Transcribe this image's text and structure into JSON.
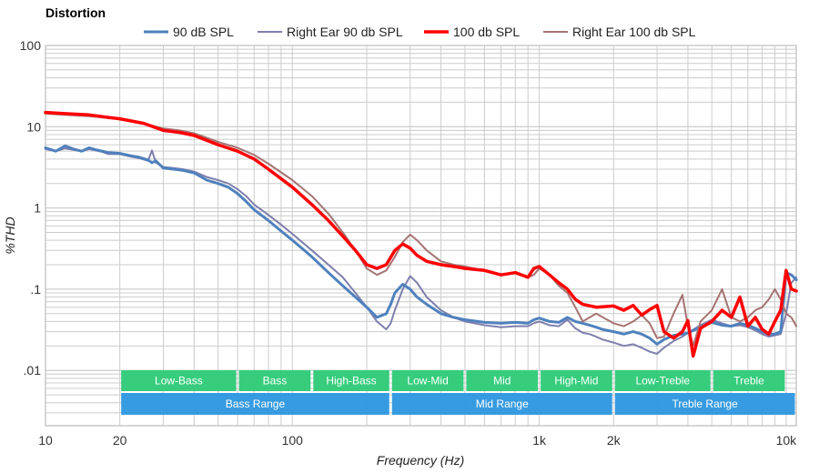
{
  "chart_data": {
    "type": "line",
    "title": "Distortion",
    "xlabel": "Frequency (Hz)",
    "ylabel": "%THD",
    "xscale": "log",
    "yscale": "log",
    "xlim": [
      10,
      11000
    ],
    "ylim": [
      0.002,
      100
    ],
    "grid": true,
    "legend_position": "top-center",
    "x_ticks": [
      {
        "value": 10,
        "label": "10"
      },
      {
        "value": 20,
        "label": "20"
      },
      {
        "value": 100,
        "label": "100"
      },
      {
        "value": 1000,
        "label": "1k"
      },
      {
        "value": 2000,
        "label": "2k"
      },
      {
        "value": 10000,
        "label": "10k"
      }
    ],
    "y_ticks": [
      {
        "value": 100,
        "label": "100"
      },
      {
        "value": 10,
        "label": "10"
      },
      {
        "value": 1,
        "label": "1"
      },
      {
        "value": 0.1,
        "label": ".1"
      },
      {
        "value": 0.01,
        "label": ".01"
      }
    ],
    "series": [
      {
        "name": "90 dB SPL",
        "color": "#4f81bd",
        "x": [
          10,
          11,
          12,
          13,
          14,
          15,
          16,
          17,
          18,
          20,
          22,
          24,
          26,
          27,
          28,
          30,
          33,
          36,
          40,
          45,
          50,
          55,
          60,
          65,
          70,
          80,
          90,
          100,
          120,
          140,
          160,
          180,
          200,
          220,
          240,
          250,
          260,
          280,
          300,
          320,
          350,
          400,
          450,
          500,
          600,
          700,
          800,
          900,
          950,
          1000,
          1100,
          1200,
          1300,
          1400,
          1500,
          1600,
          1700,
          1800,
          2000,
          2200,
          2400,
          2600,
          2800,
          3000,
          3200,
          3500,
          3800,
          4000,
          4500,
          5000,
          5500,
          6000,
          6500,
          7000,
          7500,
          8000,
          8500,
          9000,
          9500,
          10000,
          10500,
          11000
        ],
        "values": [
          5.5,
          5.0,
          5.8,
          5.3,
          5.0,
          5.5,
          5.2,
          5.0,
          4.8,
          4.7,
          4.4,
          4.2,
          3.9,
          3.6,
          3.8,
          3.1,
          3.0,
          2.9,
          2.7,
          2.2,
          2.0,
          1.8,
          1.5,
          1.2,
          0.95,
          0.7,
          0.52,
          0.4,
          0.25,
          0.16,
          0.11,
          0.08,
          0.06,
          0.045,
          0.05,
          0.065,
          0.09,
          0.115,
          0.1,
          0.08,
          0.065,
          0.05,
          0.045,
          0.042,
          0.039,
          0.038,
          0.039,
          0.038,
          0.042,
          0.044,
          0.04,
          0.039,
          0.045,
          0.04,
          0.038,
          0.036,
          0.034,
          0.032,
          0.03,
          0.028,
          0.03,
          0.028,
          0.025,
          0.021,
          0.024,
          0.027,
          0.028,
          0.029,
          0.034,
          0.039,
          0.036,
          0.035,
          0.038,
          0.036,
          0.033,
          0.03,
          0.028,
          0.028,
          0.03,
          0.16,
          0.15,
          0.13
        ]
      },
      {
        "name": "Right Ear 90 db SPL",
        "color": "#7f7fad",
        "x": [
          10,
          11,
          12,
          13,
          14,
          15,
          16,
          17,
          18,
          20,
          22,
          24,
          26,
          27,
          28,
          30,
          33,
          36,
          40,
          45,
          50,
          55,
          60,
          65,
          70,
          80,
          90,
          100,
          120,
          140,
          160,
          180,
          200,
          220,
          240,
          250,
          260,
          280,
          300,
          320,
          350,
          400,
          450,
          500,
          600,
          700,
          800,
          900,
          950,
          1000,
          1100,
          1200,
          1300,
          1400,
          1500,
          1600,
          1700,
          1800,
          2000,
          2200,
          2400,
          2600,
          2800,
          3000,
          3200,
          3500,
          3800,
          4000,
          4500,
          5000,
          5500,
          6000,
          6500,
          7000,
          7500,
          8000,
          8500,
          9000,
          9500,
          10000,
          10500,
          11000
        ],
        "values": [
          5.3,
          5.0,
          5.4,
          5.2,
          5.0,
          5.3,
          5.1,
          4.9,
          4.6,
          4.6,
          4.3,
          4.1,
          3.8,
          5.1,
          3.6,
          3.2,
          3.1,
          3.0,
          2.8,
          2.4,
          2.2,
          2.0,
          1.7,
          1.4,
          1.1,
          0.82,
          0.62,
          0.48,
          0.3,
          0.2,
          0.14,
          0.09,
          0.06,
          0.04,
          0.032,
          0.038,
          0.055,
          0.1,
          0.145,
          0.12,
          0.08,
          0.055,
          0.045,
          0.04,
          0.036,
          0.034,
          0.035,
          0.035,
          0.038,
          0.04,
          0.036,
          0.035,
          0.042,
          0.033,
          0.029,
          0.028,
          0.026,
          0.024,
          0.022,
          0.02,
          0.021,
          0.019,
          0.017,
          0.016,
          0.019,
          0.023,
          0.026,
          0.029,
          0.036,
          0.042,
          0.038,
          0.035,
          0.036,
          0.034,
          0.031,
          0.028,
          0.026,
          0.027,
          0.028,
          0.05,
          0.12,
          0.14
        ]
      },
      {
        "name": "100 db SPL",
        "color": "#ff0000",
        "x": [
          10,
          12,
          15,
          18,
          20,
          25,
          30,
          35,
          40,
          50,
          60,
          70,
          80,
          100,
          120,
          140,
          160,
          180,
          200,
          220,
          240,
          260,
          280,
          300,
          320,
          350,
          400,
          450,
          500,
          600,
          700,
          800,
          900,
          950,
          1000,
          1100,
          1200,
          1300,
          1400,
          1500,
          1700,
          2000,
          2200,
          2400,
          2600,
          2800,
          3000,
          3200,
          3500,
          3800,
          4000,
          4200,
          4500,
          5000,
          5500,
          6000,
          6500,
          7000,
          7500,
          8000,
          8500,
          9000,
          9500,
          10000,
          10500,
          11000
        ],
        "values": [
          15.0,
          14.5,
          14.0,
          13.0,
          12.5,
          11.0,
          9.0,
          8.5,
          7.8,
          6.0,
          5.0,
          4.0,
          3.0,
          1.8,
          1.1,
          0.7,
          0.45,
          0.3,
          0.2,
          0.18,
          0.2,
          0.3,
          0.36,
          0.32,
          0.26,
          0.22,
          0.2,
          0.19,
          0.18,
          0.17,
          0.15,
          0.16,
          0.14,
          0.18,
          0.19,
          0.15,
          0.12,
          0.1,
          0.075,
          0.065,
          0.06,
          0.062,
          0.055,
          0.063,
          0.048,
          0.056,
          0.063,
          0.03,
          0.025,
          0.03,
          0.041,
          0.015,
          0.033,
          0.04,
          0.055,
          0.045,
          0.08,
          0.035,
          0.045,
          0.032,
          0.028,
          0.04,
          0.055,
          0.17,
          0.1,
          0.095
        ]
      },
      {
        "name": "Right Ear 100 db SPL",
        "color": "#a57373",
        "x": [
          10,
          12,
          15,
          18,
          20,
          25,
          30,
          35,
          40,
          50,
          60,
          70,
          80,
          100,
          120,
          140,
          160,
          180,
          200,
          220,
          240,
          260,
          280,
          300,
          320,
          350,
          400,
          450,
          500,
          600,
          700,
          800,
          900,
          950,
          1000,
          1100,
          1200,
          1300,
          1400,
          1500,
          1700,
          2000,
          2200,
          2400,
          2600,
          2800,
          3000,
          3200,
          3500,
          3800,
          4000,
          4200,
          4500,
          5000,
          5500,
          6000,
          6500,
          7000,
          7500,
          8000,
          8500,
          9000,
          9500,
          10000,
          10500,
          11000
        ],
        "values": [
          14.5,
          14.0,
          13.5,
          12.8,
          12.3,
          11.0,
          9.5,
          9.0,
          8.3,
          6.5,
          5.5,
          4.5,
          3.5,
          2.2,
          1.4,
          0.85,
          0.5,
          0.3,
          0.18,
          0.15,
          0.17,
          0.25,
          0.38,
          0.47,
          0.4,
          0.3,
          0.22,
          0.2,
          0.19,
          0.17,
          0.15,
          0.16,
          0.14,
          0.15,
          0.18,
          0.15,
          0.11,
          0.09,
          0.06,
          0.04,
          0.05,
          0.038,
          0.035,
          0.04,
          0.048,
          0.038,
          0.025,
          0.026,
          0.05,
          0.085,
          0.035,
          0.02,
          0.04,
          0.055,
          0.1,
          0.045,
          0.04,
          0.045,
          0.055,
          0.06,
          0.075,
          0.1,
          0.075,
          0.05,
          0.045,
          0.035
        ]
      }
    ],
    "band_rows": [
      {
        "name": "sub-bands",
        "color": "#33cc7a",
        "bands": [
          {
            "label": "Low-Bass",
            "from": 20,
            "to": 60
          },
          {
            "label": "Bass",
            "from": 60,
            "to": 120
          },
          {
            "label": "High-Bass",
            "from": 120,
            "to": 250
          },
          {
            "label": "Low-Mid",
            "from": 250,
            "to": 500
          },
          {
            "label": "Mid",
            "from": 500,
            "to": 1000
          },
          {
            "label": "High-Mid",
            "from": 1000,
            "to": 2000
          },
          {
            "label": "Low-Treble",
            "from": 2000,
            "to": 5000
          },
          {
            "label": "Treble",
            "from": 5000,
            "to": 10000
          }
        ]
      },
      {
        "name": "ranges",
        "color": "#3399e0",
        "bands": [
          {
            "label": "Bass Range",
            "from": 20,
            "to": 250
          },
          {
            "label": "Mid Range",
            "from": 250,
            "to": 2000
          },
          {
            "label": "Treble Range",
            "from": 2000,
            "to": 11000
          }
        ]
      }
    ]
  }
}
